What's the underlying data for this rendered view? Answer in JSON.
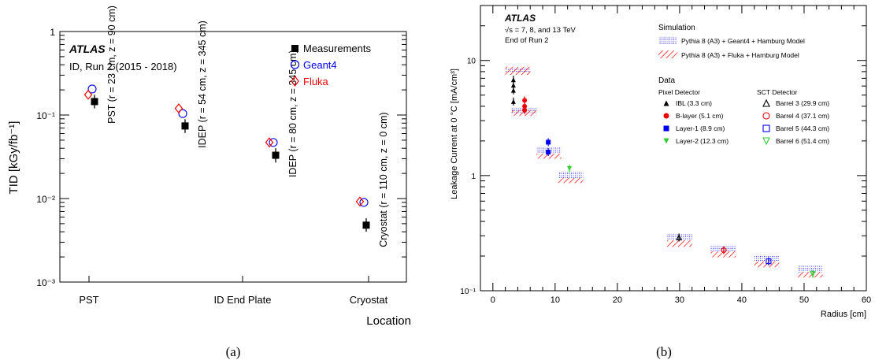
{
  "chart_data": [
    {
      "type": "scatter",
      "panel_label": "(a)",
      "atlas_label": "ATLAS",
      "subtitle": "ID, Run 2 (2015 - 2018)",
      "xlabel": "Location",
      "ylabel": "TID [kGy/fb⁻¹]",
      "yscale": "log",
      "ylim": [
        0.001,
        1
      ],
      "y_tick_labels": [
        "10⁻³",
        "10⁻²",
        "10⁻¹",
        "1"
      ],
      "categories": [
        "PST",
        "ID End Plate",
        "Cryostat"
      ],
      "points": [
        {
          "label": "PST (r = 23 cm, z = 90 cm)",
          "measurement": 0.145,
          "meas_err": [
            0.12,
            0.175
          ],
          "geant4": 0.205,
          "fluka": 0.175
        },
        {
          "label": "IDEP (r = 54 cm, z = 345 cm)",
          "measurement": 0.074,
          "meas_err": [
            0.061,
            0.089
          ],
          "geant4": 0.104,
          "fluka": 0.12
        },
        {
          "label": "IDEP (r = 80 cm, z = 345 cm)",
          "measurement": 0.033,
          "meas_err": [
            0.027,
            0.04
          ],
          "geant4": 0.047,
          "fluka": 0.047
        },
        {
          "label": "Cryostat (r = 110 cm, z = 0 cm)",
          "measurement": 0.0048,
          "meas_err": [
            0.004,
            0.0058
          ],
          "geant4": 0.009,
          "fluka": 0.0092
        }
      ],
      "series": [
        {
          "name": "Measurements",
          "color": "#000000",
          "marker": "filled-square"
        },
        {
          "name": "Geant4",
          "color": "#0000ee",
          "marker": "open-circle"
        },
        {
          "name": "Fluka",
          "color": "#ee0000",
          "marker": "open-diamond"
        }
      ]
    },
    {
      "type": "scatter",
      "panel_label": "(b)",
      "atlas_label": "ATLAS",
      "info_lines": [
        "√s = 7, 8, and 13 TeV",
        "End of Run 2"
      ],
      "xlabel": "Radius [cm]",
      "ylabel": "Leakage Current at 0 °C [mA/cm³]",
      "yscale": "log",
      "xlim": [
        -2,
        60
      ],
      "ylim": [
        0.1,
        30
      ],
      "x_ticks": [
        0,
        10,
        20,
        30,
        40,
        50,
        60
      ],
      "y_tick_labels": [
        "10⁻¹",
        "1",
        "10"
      ],
      "simulation_title": "Simulation",
      "simulation_legend": [
        {
          "name": "Pythia 8 (A3) + Geant4 + Hamburg Model",
          "color": "#4a4aff",
          "style": "dotted-band"
        },
        {
          "name": "Pythia 8 (A3) + Fluka + Hamburg Model",
          "color": "#ff0000",
          "style": "hatched-band"
        }
      ],
      "data_title": "Data",
      "pixel_title": "Pixel Detector",
      "sct_title": "SCT Detector",
      "pixel_series": [
        {
          "name": "IBL (3.3 cm)",
          "color": "#000000",
          "marker": "filled-triangle-up",
          "x": 3.3,
          "values": [
            4.4,
            5.5,
            6.1,
            6.8
          ]
        },
        {
          "name": "B-layer (5.1 cm)",
          "color": "#ee0000",
          "marker": "filled-circle",
          "x": 5.1,
          "values": [
            3.7,
            4.0,
            4.5
          ]
        },
        {
          "name": "Layer-1 (8.9 cm)",
          "color": "#0000ee",
          "marker": "filled-square",
          "x": 8.9,
          "values": [
            1.6,
            1.95
          ]
        },
        {
          "name": "Layer-2 (12.3 cm)",
          "color": "#33cc33",
          "marker": "filled-triangle-down",
          "x": 12.3,
          "values": [
            1.15
          ]
        }
      ],
      "sct_series": [
        {
          "name": "Barrel 3 (29.9 cm)",
          "color": "#000000",
          "marker": "open-triangle-up",
          "x": 29.9,
          "values": [
            0.29
          ]
        },
        {
          "name": "Barrel 4 (37.1 cm)",
          "color": "#ee0000",
          "marker": "open-circle",
          "x": 37.1,
          "values": [
            0.225
          ]
        },
        {
          "name": "Barrel 5 (44.3 cm)",
          "color": "#0000ee",
          "marker": "open-square",
          "x": 44.3,
          "values": [
            0.18
          ]
        },
        {
          "name": "Barrel 6 (51.4 cm)",
          "color": "#33cc33",
          "marker": "open-triangle-down",
          "x": 51.4,
          "values": [
            0.14
          ]
        }
      ],
      "geant4_bands": [
        {
          "x": [
            2,
            6
          ],
          "y": [
            7.8,
            8.6
          ]
        },
        {
          "x": [
            3,
            7
          ],
          "y": [
            3.5,
            3.9
          ]
        },
        {
          "x": [
            7,
            11
          ],
          "y": [
            1.55,
            1.75
          ]
        },
        {
          "x": [
            10.5,
            14.5
          ],
          "y": [
            0.95,
            1.08
          ]
        },
        {
          "x": [
            28,
            32
          ],
          "y": [
            0.28,
            0.315
          ]
        },
        {
          "x": [
            35,
            39
          ],
          "y": [
            0.22,
            0.25
          ]
        },
        {
          "x": [
            42,
            46
          ],
          "y": [
            0.18,
            0.205
          ]
        },
        {
          "x": [
            49,
            53
          ],
          "y": [
            0.145,
            0.165
          ]
        }
      ],
      "fluka_bands": [
        {
          "x": [
            2,
            6
          ],
          "y": [
            7.5,
            8.8
          ]
        },
        {
          "x": [
            3,
            7
          ],
          "y": [
            3.3,
            3.7
          ]
        },
        {
          "x": [
            7,
            11
          ],
          "y": [
            1.4,
            1.55
          ]
        },
        {
          "x": [
            10.5,
            14.5
          ],
          "y": [
            0.86,
            0.95
          ]
        },
        {
          "x": [
            28,
            32
          ],
          "y": [
            0.24,
            0.275
          ]
        },
        {
          "x": [
            35,
            39
          ],
          "y": [
            0.195,
            0.22
          ]
        },
        {
          "x": [
            42,
            46
          ],
          "y": [
            0.16,
            0.18
          ]
        },
        {
          "x": [
            49,
            53
          ],
          "y": [
            0.13,
            0.145
          ]
        }
      ]
    }
  ]
}
